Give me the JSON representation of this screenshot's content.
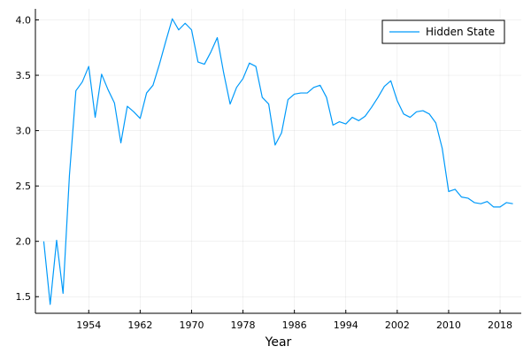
{
  "chart_data": {
    "type": "line",
    "title": "",
    "xlabel": "Year",
    "ylabel": "",
    "xlim": [
      1945.7,
      2021.3
    ],
    "ylim": [
      1.35,
      4.1
    ],
    "grid": true,
    "legend_position": "top-right",
    "x_ticks": [
      1954,
      1962,
      1970,
      1978,
      1986,
      1994,
      2002,
      2010,
      2018
    ],
    "x_tick_labels": [
      "1954",
      "1962",
      "1970",
      "1978",
      "1986",
      "1994",
      "2002",
      "2010",
      "2018"
    ],
    "y_ticks": [
      1.5,
      2.0,
      2.5,
      3.0,
      3.5,
      4.0
    ],
    "y_tick_labels": [
      "1.5",
      "2.0",
      "2.5",
      "3.0",
      "3.5",
      "4.0"
    ],
    "series": [
      {
        "name": "Hidden State",
        "color": "#009AFA",
        "x": [
          1947,
          1948,
          1949,
          1950,
          1951,
          1952,
          1953,
          1954,
          1955,
          1956,
          1957,
          1958,
          1959,
          1960,
          1961,
          1962,
          1963,
          1964,
          1965,
          1966,
          1967,
          1968,
          1969,
          1970,
          1971,
          1972,
          1973,
          1974,
          1975,
          1976,
          1977,
          1978,
          1979,
          1980,
          1981,
          1982,
          1983,
          1984,
          1985,
          1986,
          1987,
          1988,
          1989,
          1990,
          1991,
          1992,
          1993,
          1994,
          1995,
          1996,
          1997,
          1998,
          1999,
          2000,
          2001,
          2002,
          2003,
          2004,
          2005,
          2006,
          2007,
          2008,
          2009,
          2010,
          2011,
          2012,
          2013,
          2014,
          2015,
          2016,
          2017,
          2018,
          2019,
          2020
        ],
        "values": [
          2.0,
          1.43,
          2.01,
          1.53,
          2.6,
          3.36,
          3.44,
          3.58,
          3.12,
          3.51,
          3.37,
          3.25,
          2.89,
          3.22,
          3.17,
          3.11,
          3.34,
          3.41,
          3.6,
          3.81,
          4.01,
          3.91,
          3.97,
          3.91,
          3.62,
          3.6,
          3.71,
          3.84,
          3.52,
          3.24,
          3.39,
          3.47,
          3.61,
          3.58,
          3.3,
          3.24,
          2.87,
          2.98,
          3.28,
          3.33,
          3.34,
          3.34,
          3.39,
          3.41,
          3.3,
          3.05,
          3.08,
          3.06,
          3.12,
          3.09,
          3.13,
          3.21,
          3.3,
          3.4,
          3.45,
          3.27,
          3.15,
          3.12,
          3.17,
          3.18,
          3.15,
          3.07,
          2.84,
          2.45,
          2.47,
          2.4,
          2.39,
          2.35,
          2.34,
          2.36,
          2.31,
          2.31,
          2.35,
          2.34
        ]
      }
    ]
  }
}
